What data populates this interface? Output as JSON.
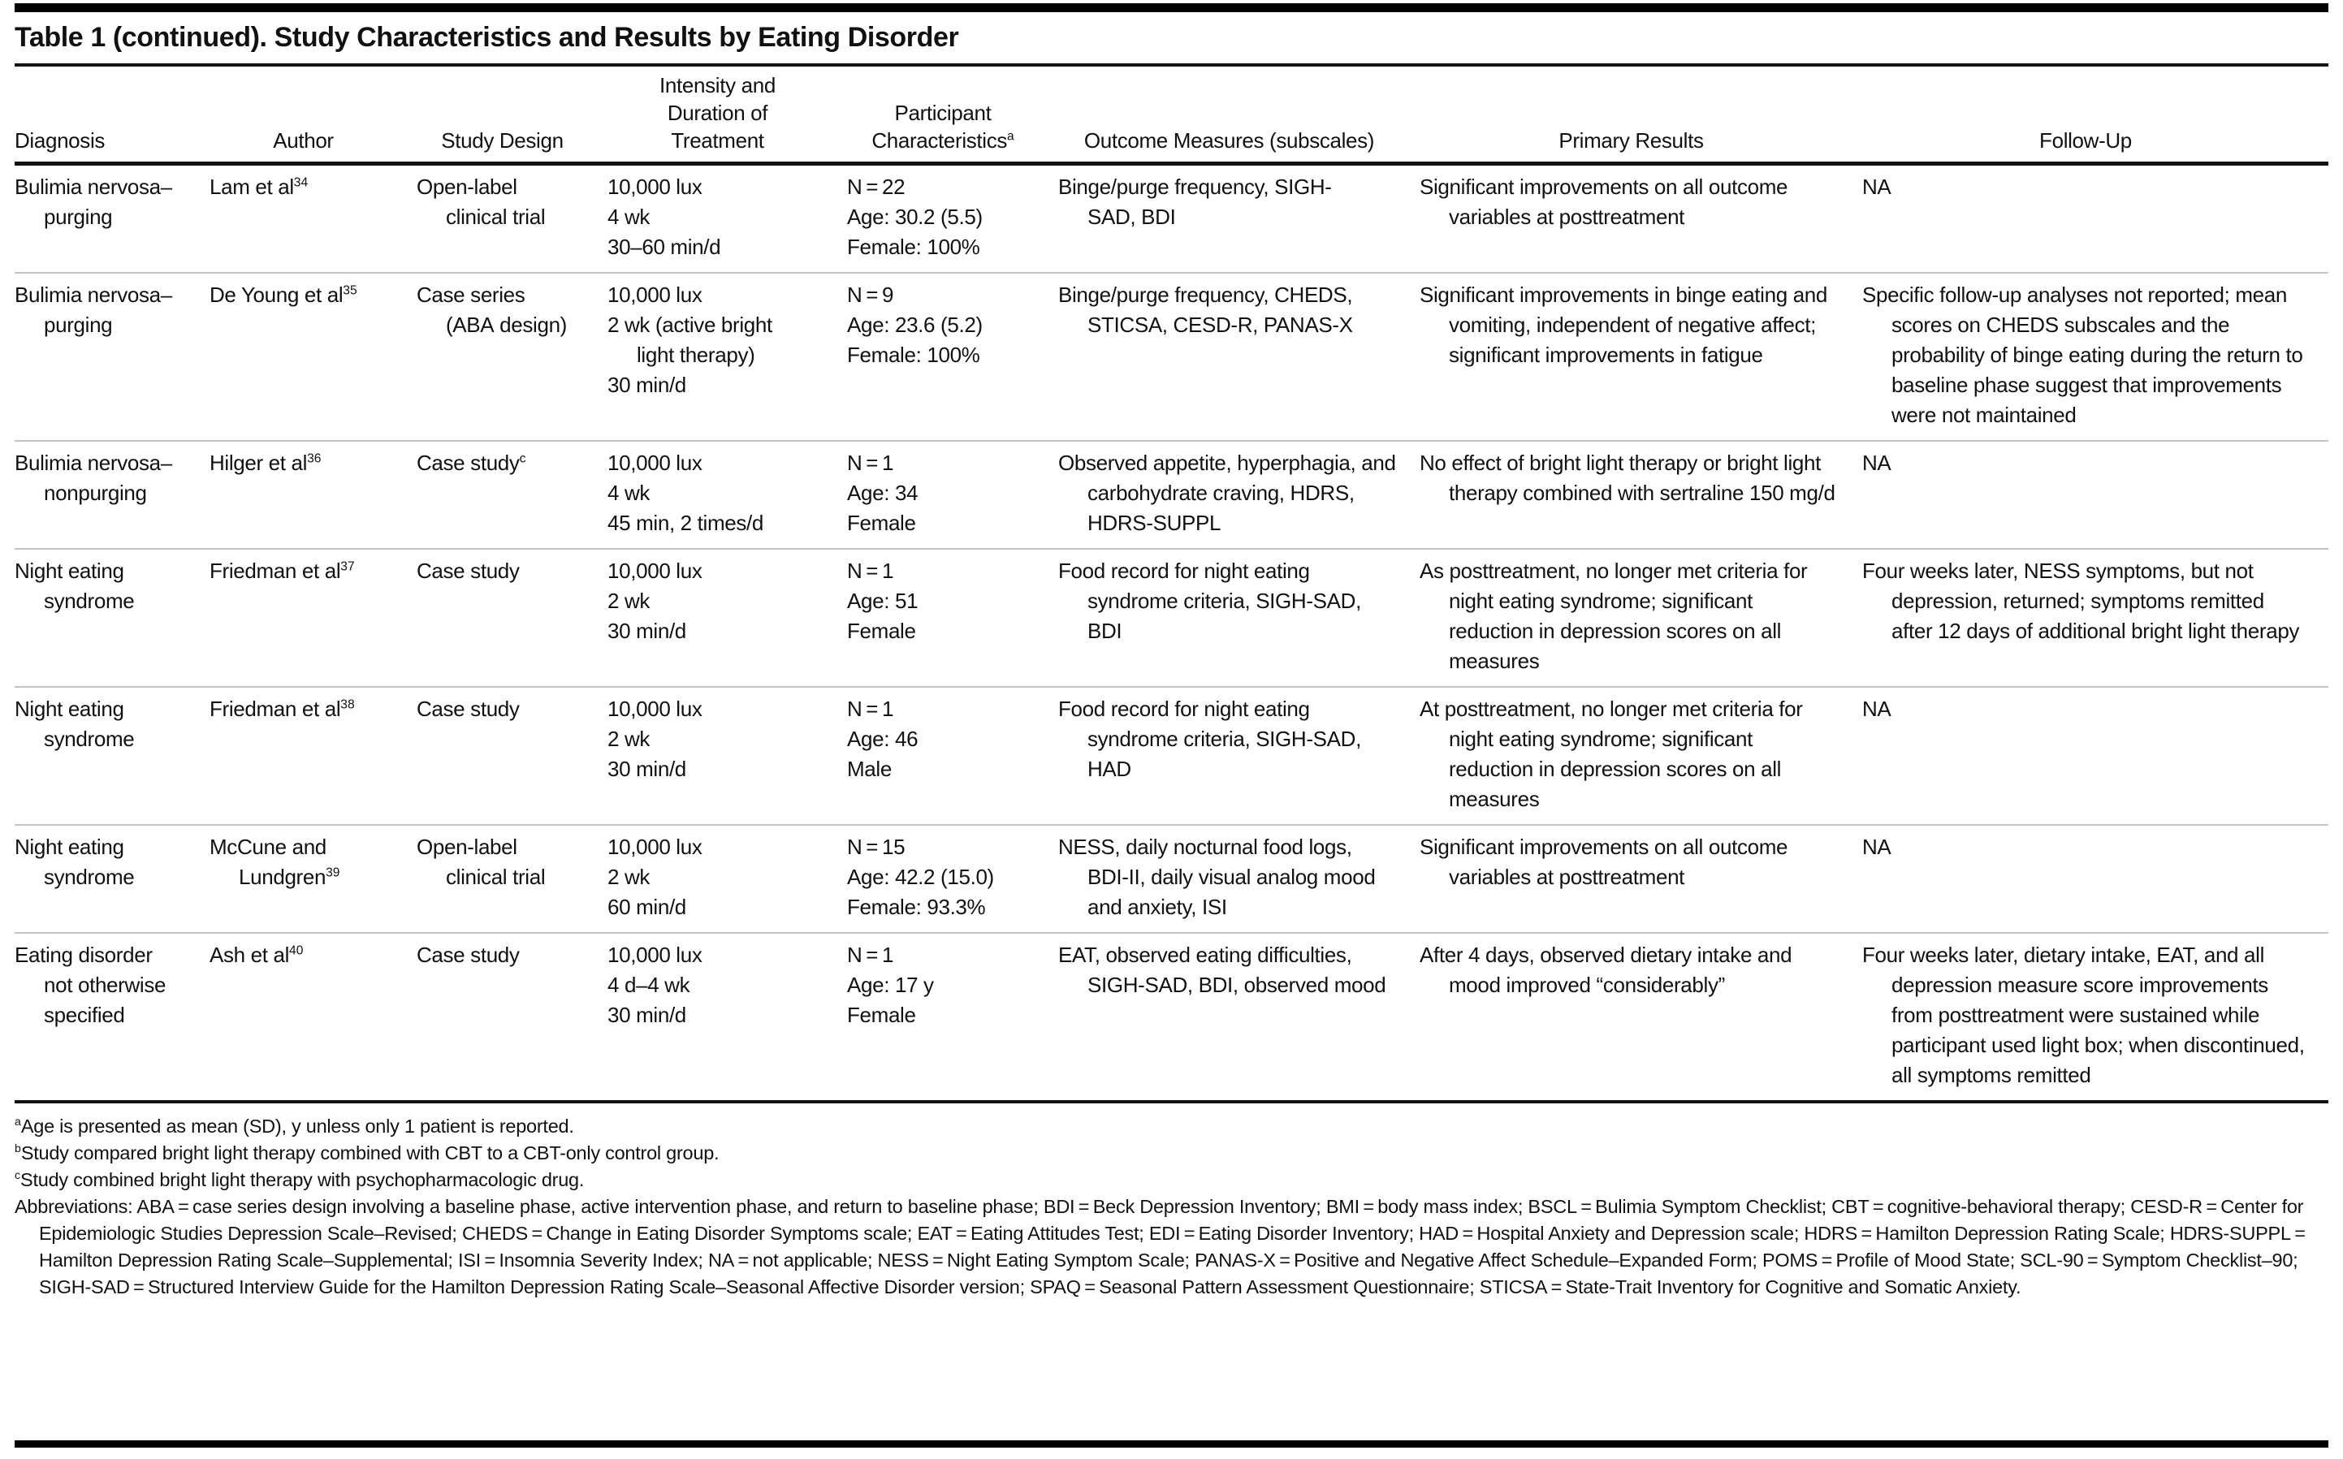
{
  "title": "Table 1 (continued). Study Characteristics and Results by Eating Disorder",
  "table": {
    "columns": [
      {
        "key": "diagnosis",
        "label": "Diagnosis"
      },
      {
        "key": "author",
        "label": "Author"
      },
      {
        "key": "design",
        "label": "Study Design"
      },
      {
        "key": "treatment",
        "label": "Intensity and\nDuration of\nTreatment"
      },
      {
        "key": "participants",
        "label": "Participant\nCharacteristics^{a}"
      },
      {
        "key": "outcomes",
        "label": "Outcome Measures (subscales)"
      },
      {
        "key": "results",
        "label": "Primary Results"
      },
      {
        "key": "followup",
        "label": "Follow-Up"
      }
    ],
    "rows": [
      {
        "diagnosis": "Bulimia nervosa–purging",
        "author": "Lam et al^{34}",
        "design": "Open-label clinical trial",
        "treatment": [
          "10,000 lux",
          "4 wk",
          "30–60 min/d"
        ],
        "participants": [
          "N = 22",
          "Age: 30.2 (5.5)",
          "Female: 100%"
        ],
        "outcomes": "Binge/purge frequency, SIGH-SAD, BDI",
        "results": "Significant improvements on all outcome variables at posttreatment",
        "followup": "NA"
      },
      {
        "diagnosis": "Bulimia nervosa–purging",
        "author": "De Young et al^{35}",
        "design": "Case series (ABA design)",
        "treatment": [
          "10,000 lux",
          "2 wk (active bright light therapy)",
          "30 min/d"
        ],
        "participants": [
          "N = 9",
          "Age: 23.6 (5.2)",
          "Female: 100%"
        ],
        "outcomes": "Binge/purge frequency, CHEDS, STICSA, CESD-R, PANAS-X",
        "results": "Significant improvements in binge eating and vomiting, independent of negative affect; significant improvements in fatigue",
        "followup": "Specific follow-up analyses not reported; mean scores on CHEDS subscales and the probability of binge eating during the return to baseline phase suggest that improvements were not maintained"
      },
      {
        "diagnosis": "Bulimia nervosa–nonpurging",
        "author": "Hilger et al^{36}",
        "design": "Case study^{c}",
        "treatment": [
          "10,000 lux",
          "4 wk",
          "45 min, 2 times/d"
        ],
        "participants": [
          "N = 1",
          "Age: 34",
          "Female"
        ],
        "outcomes": "Observed appetite, hyperphagia, and carbohydrate craving, HDRS, HDRS-SUPPL",
        "results": "No effect of bright light therapy or bright light therapy combined with sertraline 150 mg/d",
        "followup": "NA"
      },
      {
        "diagnosis": "Night eating syndrome",
        "author": "Friedman et al^{37}",
        "design": "Case study",
        "treatment": [
          "10,000 lux",
          "2 wk",
          "30 min/d"
        ],
        "participants": [
          "N = 1",
          "Age: 51",
          "Female"
        ],
        "outcomes": "Food record for night eating syndrome criteria, SIGH-SAD, BDI",
        "results": "As posttreatment, no longer met criteria for night eating syndrome; significant reduction in depression scores on all measures",
        "followup": "Four weeks later, NESS symptoms, but not depression, returned; symptoms remitted after 12 days of additional bright light therapy"
      },
      {
        "diagnosis": "Night eating syndrome",
        "author": "Friedman et al^{38}",
        "design": "Case study",
        "treatment": [
          "10,000 lux",
          "2 wk",
          "30 min/d"
        ],
        "participants": [
          "N = 1",
          "Age: 46",
          "Male"
        ],
        "outcomes": "Food record for night eating syndrome criteria, SIGH-SAD, HAD",
        "results": "At posttreatment, no longer met criteria for night eating syndrome; significant reduction in depression scores on all measures",
        "followup": "NA"
      },
      {
        "diagnosis": "Night eating syndrome",
        "author": "McCune and Lundgren^{39}",
        "design": "Open-label clinical trial",
        "treatment": [
          "10,000 lux",
          "2 wk",
          "60 min/d"
        ],
        "participants": [
          "N = 15",
          "Age: 42.2 (15.0)",
          "Female: 93.3%"
        ],
        "outcomes": "NESS, daily nocturnal food logs, BDI-II, daily visual analog mood and anxiety, ISI",
        "results": "Significant improvements on all outcome variables at posttreatment",
        "followup": "NA"
      },
      {
        "diagnosis": "Eating disorder not otherwise specified",
        "author": "Ash et al^{40}",
        "design": "Case study",
        "treatment": [
          "10,000 lux",
          "4 d–4 wk",
          "30 min/d"
        ],
        "participants": [
          "N = 1",
          "Age: 17 y",
          "Female"
        ],
        "outcomes": "EAT, observed eating difficulties, SIGH-SAD, BDI, observed mood",
        "results": "After 4 days, observed dietary intake and mood improved “considerably”",
        "followup": "Four weeks later, dietary intake, EAT, and all depression measure score improvements from posttreatment were sustained while participant used light box; when discontinued, all symptoms remitted"
      }
    ]
  },
  "footnotes": [
    "^{a}Age is presented as mean (SD), y unless only 1 patient is reported.",
    "^{b}Study compared bright light therapy combined with CBT to a CBT-only control group.",
    "^{c}Study combined bright light therapy with psychopharmacologic drug.",
    "Abbreviations: ABA = case series design involving a baseline phase, active intervention phase, and return to baseline phase; BDI = Beck Depression Inventory; BMI = body mass index; BSCL = Bulimia Symptom Checklist; CBT = cognitive-behavioral therapy; CESD-R = Center for Epidemiologic Studies Depression Scale–Revised; CHEDS = Change in Eating Disorder Symptoms scale; EAT = Eating Attitudes Test; EDI = Eating Disorder Inventory; HAD = Hospital Anxiety and Depression scale; HDRS = Hamilton Depression Rating Scale; HDRS-SUPPL = Hamilton Depression Rating Scale–Supplemental; ISI = Insomnia Severity Index;  NA = not applicable; NESS = Night Eating Symptom Scale; PANAS-X = Positive and Negative Affect Schedule–Expanded Form; POMS = Profile of Mood State; SCL-90 = Symptom Checklist–90; SIGH-SAD = Structured Interview Guide for the Hamilton Depression Rating Scale–Seasonal Affective Disorder version; SPAQ = Seasonal Pattern Assessment Questionnaire; STICSA = State-Trait Inventory for Cognitive and Somatic Anxiety."
  ]
}
